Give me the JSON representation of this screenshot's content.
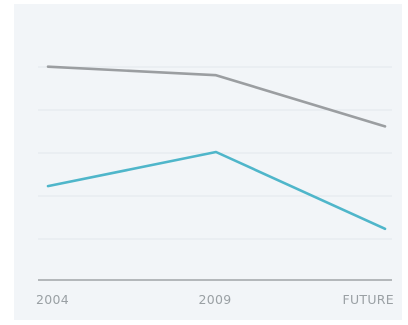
{
  "chart_data": {
    "type": "line",
    "title": "",
    "xlabel": "",
    "ylabel": "",
    "categories": [
      "2004",
      "2009",
      "FUTURE"
    ],
    "ylim": [
      0,
      6
    ],
    "grid": true,
    "legend": "none",
    "series": [
      {
        "values": [
          5.0,
          4.8,
          3.6
        ],
        "color": "#9b9ea1"
      },
      {
        "values": [
          2.2,
          3.0,
          1.2
        ],
        "color": "#4fb6ca"
      }
    ],
    "axis_color": "#b4b8bb",
    "grid_color": "#e3e8ec"
  }
}
